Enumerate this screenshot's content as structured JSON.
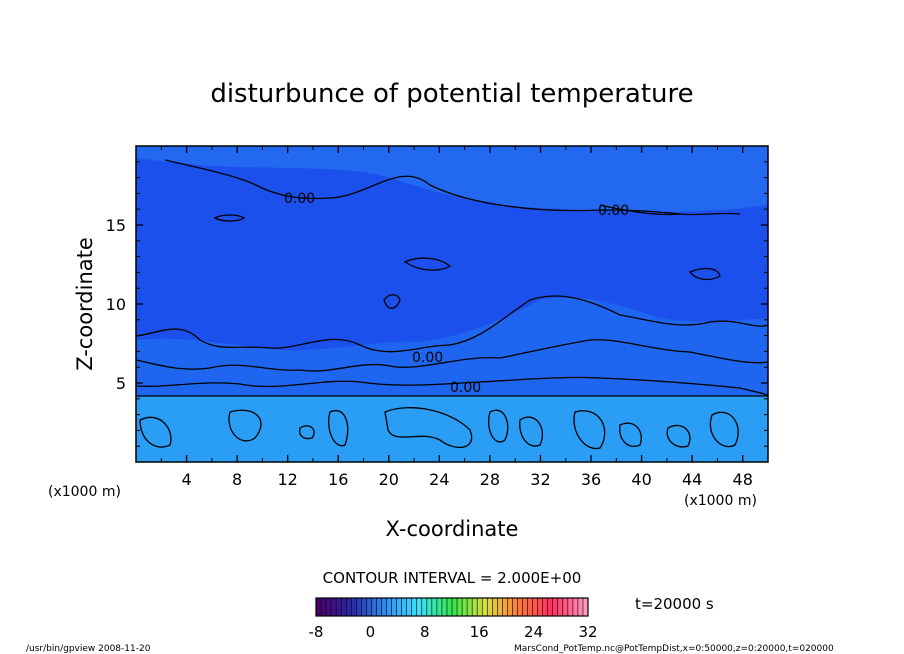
{
  "chart_data": {
    "type": "heatmap",
    "title": "disturbunce of potential temperature",
    "xlabel": "X-coordinate",
    "ylabel": "Z-coordinate",
    "x_unit_left": "(x1000 m)",
    "x_unit_right": "(x1000 m)",
    "xlim": [
      0,
      50
    ],
    "ylim": [
      0,
      20
    ],
    "x_ticks": [
      "4",
      "8",
      "12",
      "16",
      "20",
      "24",
      "28",
      "32",
      "36",
      "40",
      "44",
      "48"
    ],
    "x_tick_values": [
      4,
      8,
      12,
      16,
      20,
      24,
      28,
      32,
      36,
      40,
      44,
      48
    ],
    "y_ticks": [
      "5",
      "10",
      "15"
    ],
    "y_tick_values": [
      5,
      10,
      15
    ],
    "contour_labels": [
      "0.00",
      "0.00",
      "0.00",
      "0.00"
    ],
    "contour_interval": "CONTOUR INTERVAL = 2.000E+00",
    "time_label": "t=20000 s",
    "colorbar": {
      "ticks": [
        "-8",
        "0",
        "8",
        "16",
        "24",
        "32"
      ],
      "tick_values": [
        -8,
        0,
        8,
        16,
        24,
        32
      ],
      "range": [
        -8,
        32
      ],
      "colors": [
        "#4a006a",
        "#2a2aa8",
        "#2f8ef0",
        "#3fe0ff",
        "#32e84a",
        "#d8e040",
        "#ff7a3a",
        "#ff3060",
        "#ff9abf"
      ]
    },
    "field_colors": {
      "upper": "#1c50ec",
      "middle": "#1e66f0",
      "lower": "#2a9df5",
      "top_band": "#2268f0"
    },
    "grid": false
  },
  "footer": {
    "left": "/usr/bin/gpview   2008-11-20",
    "right": "MarsCond_PotTemp.nc@PotTempDist,x=0:50000,z=0:20000,t=020000"
  }
}
